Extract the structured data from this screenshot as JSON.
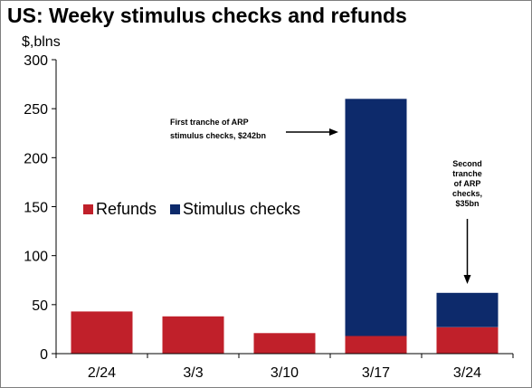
{
  "chart_data": {
    "type": "bar",
    "stacked": true,
    "title": "US: Weeky stimulus checks and refunds",
    "ylabel": "$,blns",
    "xlabel": "",
    "categories": [
      "2/24",
      "3/3",
      "3/10",
      "3/17",
      "3/24"
    ],
    "series": [
      {
        "name": "Refunds",
        "color": "#c0202a",
        "values": [
          43,
          38,
          21,
          18,
          27
        ]
      },
      {
        "name": "Stimulus checks",
        "color": "#0d2a6b",
        "values": [
          0,
          0,
          0,
          242,
          35
        ]
      }
    ],
    "ylim": [
      0,
      300
    ],
    "yticks": [
      "0",
      "50",
      "100",
      "150",
      "200",
      "250",
      "300"
    ],
    "grid": false,
    "legend_position": "middle-left",
    "annotations": [
      {
        "lines": [
          "First tranche of ARP",
          "stimulus checks, $242bn"
        ],
        "category": "3/17",
        "arrow": "right"
      },
      {
        "lines": [
          "Second",
          "tranche",
          "of ARP",
          "checks,",
          "$35bn"
        ],
        "category": "3/24",
        "arrow": "down"
      }
    ]
  }
}
